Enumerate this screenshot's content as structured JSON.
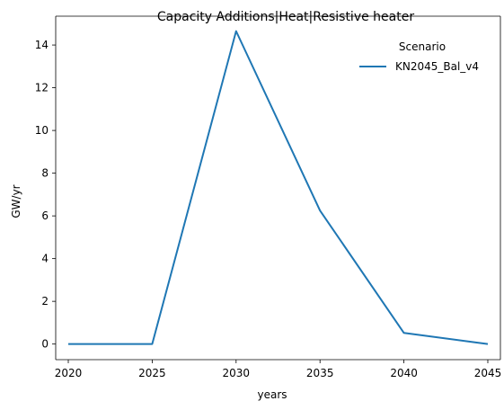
{
  "chart_data": {
    "type": "line",
    "title": "Capacity Additions|Heat|Resistive heater",
    "xlabel": "years",
    "ylabel": "GW/yr",
    "x": [
      2020,
      2025,
      2030,
      2035,
      2040,
      2045
    ],
    "xticks": [
      "2020",
      "2025",
      "2030",
      "2035",
      "2040",
      "2045"
    ],
    "yticks": [
      "0",
      "2",
      "4",
      "6",
      "8",
      "10",
      "12",
      "14"
    ],
    "xlim": [
      2019.25,
      2045.75
    ],
    "ylim": [
      -0.73,
      15.35
    ],
    "grid": false,
    "legend": {
      "title": "Scenario",
      "placement": "top-right"
    },
    "series": [
      {
        "name": "KN2045_Bal_v4",
        "color": "#1f77b4",
        "values": [
          0.0,
          0.0,
          14.65,
          6.25,
          0.52,
          0.0
        ]
      }
    ]
  }
}
